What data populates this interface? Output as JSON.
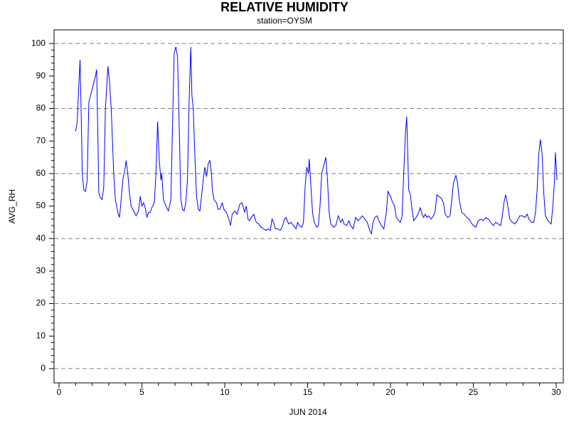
{
  "chart_data": {
    "type": "line",
    "title": "RELATIVE HUMIDITY",
    "subtitle": "station=OYSM",
    "x_label": "JUN 2014",
    "y_label": "AVG_RH",
    "xlim": [
      -0.3,
      30.43
    ],
    "ylim": [
      -4.4,
      104.2
    ],
    "xticks": [
      0,
      5,
      10,
      15,
      20,
      25,
      30
    ],
    "yticks": [
      0,
      10,
      20,
      30,
      40,
      50,
      60,
      70,
      80,
      90,
      100
    ],
    "ygrid": [
      0,
      20,
      40,
      60,
      80,
      100
    ],
    "x_minor_per_major": 5,
    "y_minor_per_major": 5,
    "x": [
      1.0,
      1.1,
      1.2,
      1.27,
      1.35,
      1.4,
      1.5,
      1.6,
      1.7,
      1.8,
      2.0,
      2.2,
      2.27,
      2.35,
      2.4,
      2.5,
      2.6,
      2.7,
      2.8,
      2.95,
      3.05,
      3.15,
      3.3,
      3.4,
      3.55,
      3.65,
      3.75,
      3.85,
      4.0,
      4.05,
      4.15,
      4.25,
      4.35,
      4.5,
      4.65,
      4.8,
      4.9,
      5.0,
      5.1,
      5.2,
      5.3,
      5.4,
      5.5,
      5.6,
      5.75,
      5.85,
      5.95,
      6.05,
      6.15,
      6.2,
      6.3,
      6.45,
      6.6,
      6.75,
      6.85,
      6.95,
      7.05,
      7.15,
      7.25,
      7.35,
      7.45,
      7.55,
      7.65,
      7.75,
      7.85,
      7.95,
      8.02,
      8.1,
      8.2,
      8.3,
      8.4,
      8.5,
      8.6,
      8.7,
      8.8,
      8.9,
      9.0,
      9.1,
      9.2,
      9.25,
      9.35,
      9.5,
      9.6,
      9.7,
      9.85,
      9.95,
      10.1,
      10.25,
      10.35,
      10.45,
      10.6,
      10.75,
      10.9,
      11.05,
      11.2,
      11.3,
      11.4,
      11.5,
      11.6,
      11.75,
      11.9,
      12.05,
      12.2,
      12.35,
      12.5,
      12.6,
      12.75,
      12.85,
      12.95,
      13.05,
      13.2,
      13.35,
      13.5,
      13.6,
      13.7,
      13.85,
      14.0,
      14.15,
      14.3,
      14.4,
      14.5,
      14.65,
      14.75,
      14.85,
      14.95,
      15.05,
      15.1,
      15.2,
      15.3,
      15.4,
      15.55,
      15.65,
      15.75,
      15.85,
      16.0,
      16.1,
      16.2,
      16.3,
      16.4,
      16.55,
      16.7,
      16.85,
      17.0,
      17.1,
      17.2,
      17.35,
      17.5,
      17.6,
      17.75,
      17.9,
      18.05,
      18.15,
      18.3,
      18.45,
      18.6,
      18.75,
      18.85,
      18.95,
      19.05,
      19.2,
      19.3,
      19.45,
      19.6,
      19.75,
      19.85,
      20.0,
      20.1,
      20.25,
      20.35,
      20.5,
      20.6,
      20.7,
      20.8,
      20.9,
      20.98,
      21.05,
      21.1,
      21.2,
      21.3,
      21.4,
      21.55,
      21.7,
      21.8,
      21.9,
      22.0,
      22.1,
      22.2,
      22.3,
      22.45,
      22.6,
      22.7,
      22.8,
      22.9,
      23.05,
      23.2,
      23.3,
      23.45,
      23.6,
      23.7,
      23.8,
      23.95,
      24.05,
      24.15,
      24.3,
      24.45,
      24.6,
      24.75,
      24.85,
      25.0,
      25.15,
      25.3,
      25.45,
      25.6,
      25.75,
      25.9,
      26.05,
      26.2,
      26.35,
      26.5,
      26.65,
      26.75,
      26.85,
      26.95,
      27.05,
      27.2,
      27.35,
      27.5,
      27.65,
      27.8,
      27.95,
      28.1,
      28.25,
      28.35,
      28.5,
      28.65,
      28.75,
      28.85,
      28.95,
      29.05,
      29.15,
      29.25,
      29.35,
      29.5,
      29.6,
      29.7,
      29.8,
      29.9,
      29.95,
      30.05
    ],
    "series": [
      {
        "name": "AVG_RH",
        "color": "#0000ff",
        "values": [
          73,
          76,
          88,
          95,
          75,
          60,
          55,
          54.5,
          58,
          82,
          86,
          90,
          92,
          70,
          54,
          52.5,
          52,
          56,
          80,
          93,
          88,
          80,
          60,
          52,
          48,
          46.5,
          52,
          58,
          62,
          64,
          60,
          54,
          50,
          48.5,
          47,
          48.5,
          53,
          50,
          51,
          49.5,
          46.5,
          48,
          48,
          49.5,
          51,
          60,
          76,
          64,
          58,
          60,
          52,
          50,
          48.5,
          52,
          75,
          97,
          99,
          96,
          75,
          52,
          49,
          48.5,
          51,
          58,
          82,
          99,
          84,
          80,
          65,
          53,
          49,
          48.5,
          53,
          58,
          62,
          59,
          63,
          64,
          60,
          55,
          52,
          51,
          49,
          49,
          51,
          49,
          48,
          46,
          44,
          47.5,
          48.5,
          47.5,
          50.5,
          51,
          48,
          50,
          46,
          45.5,
          46.5,
          47.5,
          45,
          44.5,
          43.5,
          43,
          42.5,
          43,
          42.5,
          46,
          45,
          43,
          43,
          42.5,
          44,
          46,
          46.5,
          44.5,
          45,
          44,
          43,
          45,
          44,
          43.5,
          45,
          56,
          62,
          60,
          64.5,
          56,
          48,
          45,
          43.5,
          44,
          50,
          60,
          63,
          65,
          58,
          48,
          44.5,
          43.5,
          44,
          47,
          45,
          46,
          44.5,
          44,
          45.5,
          44,
          43,
          46.5,
          45.5,
          46,
          47,
          46,
          45,
          42.5,
          41.5,
          45,
          46.5,
          47,
          45.5,
          44,
          43,
          48,
          54.5,
          53,
          51.5,
          50,
          46.5,
          45.5,
          45,
          47,
          60,
          72,
          77.5,
          65,
          55,
          53.5,
          49,
          45.5,
          46.5,
          48,
          49.5,
          47.5,
          46.5,
          47.5,
          46.5,
          47,
          46,
          47,
          48.5,
          53.5,
          53,
          52.5,
          51,
          47.5,
          46.5,
          47,
          52,
          57,
          59.5,
          57,
          52,
          48,
          47.5,
          46.5,
          46,
          45,
          44,
          43.5,
          45.5,
          46,
          45.5,
          46.5,
          46,
          45,
          44,
          45,
          44.5,
          44,
          47,
          51,
          53.5,
          51,
          46,
          45,
          44.5,
          45.5,
          47,
          47,
          46.5,
          47.5,
          46,
          45,
          45,
          48,
          55,
          66,
          70.5,
          66,
          54,
          47,
          45.5,
          45,
          44.5,
          50,
          58,
          66.5,
          58
        ]
      }
    ]
  }
}
